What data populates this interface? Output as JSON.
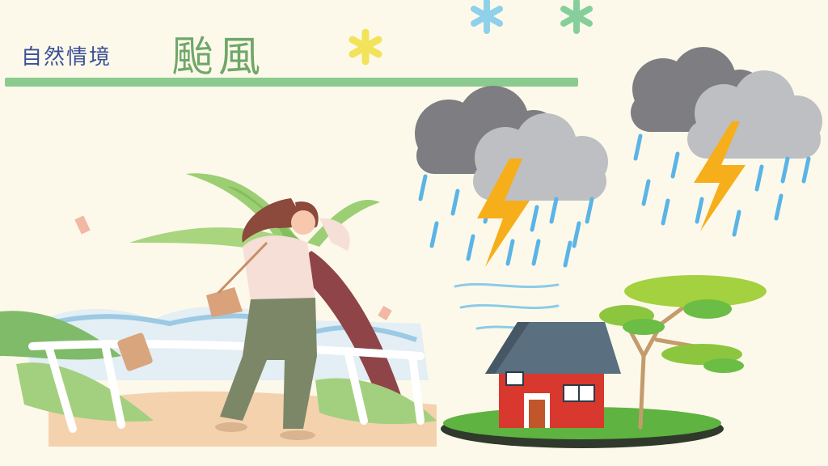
{
  "header": {
    "category_label": "自然情境",
    "title": "颱風"
  },
  "colors": {
    "background": "#fdf9ea",
    "category_text": "#3b4f97",
    "title_text": "#6fa768",
    "title_rule": "#8ccb8f",
    "rain": "#5bb4e6",
    "lightning": "#f7ae1b",
    "house_wall": "#d9382e",
    "house_roof": "#5a6f80",
    "grass": "#5fb341",
    "tree_leaves": "#9ccf3a"
  },
  "icons": [
    "snowflake-icon",
    "cloud-icon",
    "lightning-icon",
    "rain-icon",
    "wind-icon",
    "house-icon",
    "tree-icon",
    "palm-tree-icon",
    "woman-in-wind-icon",
    "railing-icon"
  ]
}
